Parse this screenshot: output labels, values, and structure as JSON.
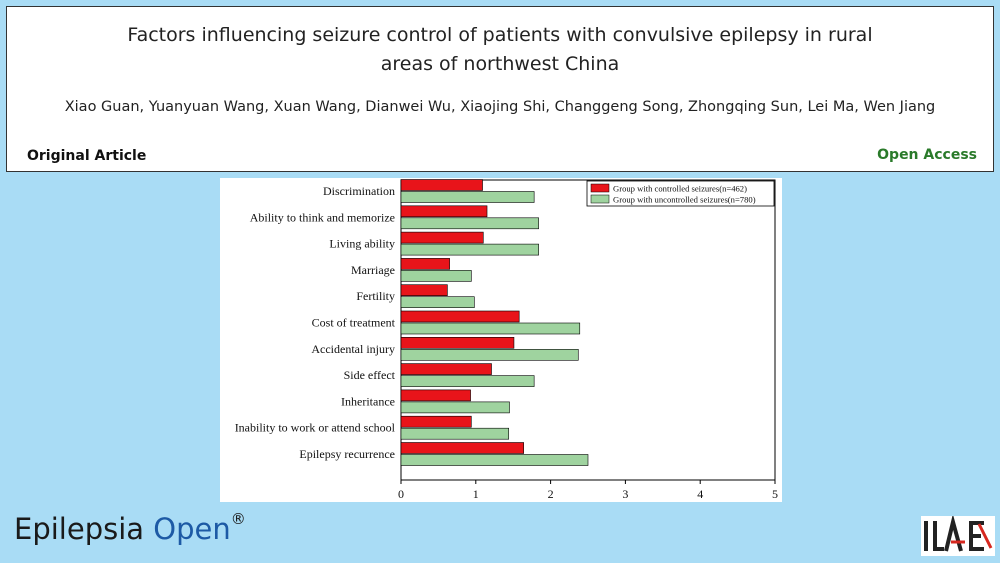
{
  "header": {
    "title_line1": "Factors influencing seizure control of patients with convulsive epilepsy in rural",
    "title_line2": "areas of northwest China",
    "authors": "Xiao Guan, Yuanyuan Wang, Xuan Wang, Dianwei Wu, Xiaojing Shi, Changgeng Song, Zhongqing Sun, Lei Ma, Wen Jiang",
    "article_type": "Original Article",
    "access": "Open Access"
  },
  "footer": {
    "journal_name": "Epilepsia",
    "journal_open": "Open",
    "journal_mark": "®",
    "logo_text": "ILAE"
  },
  "colors": {
    "controlled": "#e8141a",
    "uncontrolled": "#9fd39f",
    "open_access": "#2a7a2a",
    "journal_open": "#1d5aa5",
    "background": "#a9dcf5"
  },
  "chart_data": {
    "type": "bar",
    "orientation": "horizontal",
    "categories": [
      "Discrimination",
      "Ability to think and memorize",
      "Living ability",
      "Marriage",
      "Fertility",
      "Cost of treatment",
      "Accidental injury",
      "Side effect",
      "Inheritance",
      "Inability to work or attend school",
      "Epilepsy recurrence"
    ],
    "series": [
      {
        "name": "Group with controlled seizures(n=462)",
        "color": "#e8141a",
        "values": [
          1.09,
          1.15,
          1.1,
          0.65,
          0.62,
          1.58,
          1.51,
          1.21,
          0.93,
          0.94,
          1.64
        ]
      },
      {
        "name": "Group with uncontrolled seizures(n=780)",
        "color": "#9fd39f",
        "values": [
          1.78,
          1.84,
          1.84,
          0.94,
          0.98,
          2.39,
          2.37,
          1.78,
          1.45,
          1.44,
          2.5
        ]
      }
    ],
    "xlim": [
      0,
      5
    ],
    "xticks": [
      "0",
      "1",
      "2",
      "3",
      "4",
      "5"
    ],
    "legend_position": "top-right",
    "grid": false
  }
}
